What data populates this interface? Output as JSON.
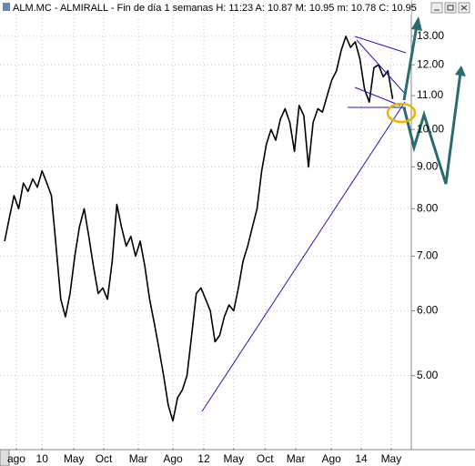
{
  "header": {
    "title": "ALM.MC - ALMIRALL - Fin de día 1 semanas  H: 11:23  A: 10.87  M: 10.95  m: 10.78  C: 10.95"
  },
  "chart_data": {
    "type": "line",
    "color": "#000000",
    "log_scale": true,
    "grid": true,
    "values": [
      7.3,
      7.8,
      8.3,
      8.0,
      8.6,
      8.4,
      8.7,
      8.5,
      8.9,
      8.6,
      8.3,
      7.2,
      6.2,
      5.9,
      6.3,
      7.0,
      7.6,
      8.0,
      7.4,
      6.8,
      6.3,
      6.4,
      6.2,
      6.9,
      8.1,
      7.6,
      7.2,
      7.4,
      7.0,
      7.3,
      6.8,
      6.2,
      5.8,
      5.4,
      5.0,
      4.6,
      4.4,
      4.7,
      4.8,
      5.0,
      5.6,
      6.3,
      6.4,
      6.2,
      6.0,
      5.5,
      5.6,
      5.9,
      6.1,
      6.0,
      6.4,
      6.9,
      7.2,
      7.6,
      8.0,
      8.9,
      9.6,
      10.0,
      9.7,
      10.3,
      10.6,
      10.2,
      9.4,
      10.7,
      10.4,
      9.0,
      10.2,
      10.6,
      10.5,
      11.0,
      11.5,
      11.8,
      12.5,
      13.0,
      12.6,
      12.8,
      12.2,
      11.2,
      10.8,
      11.9,
      12.0,
      11.6,
      11.8,
      10.9
    ],
    "xlim": [
      -1,
      87
    ],
    "xticks": [
      {
        "value": 2.5,
        "label": "ago"
      },
      {
        "value": 8,
        "label": "10"
      },
      {
        "value": 14.8,
        "label": "May"
      },
      {
        "value": 21.2,
        "label": "Oct"
      },
      {
        "value": 28.6,
        "label": "Mar"
      },
      {
        "value": 36,
        "label": "Ago"
      },
      {
        "value": 42.6,
        "label": "12"
      },
      {
        "value": 49,
        "label": "May"
      },
      {
        "value": 55.7,
        "label": "Oct"
      },
      {
        "value": 62.3,
        "label": "Mar"
      },
      {
        "value": 69.9,
        "label": "Ago"
      },
      {
        "value": 76.3,
        "label": "14"
      },
      {
        "value": 82.7,
        "label": "May"
      }
    ],
    "ylim": [
      4.08,
      14.4
    ],
    "yticks": [
      {
        "value": 5,
        "label": "5.00"
      },
      {
        "value": 6,
        "label": "6.00"
      },
      {
        "value": 7,
        "label": "7.00"
      },
      {
        "value": 8,
        "label": "8.00"
      },
      {
        "value": 9,
        "label": "9.00"
      },
      {
        "value": 10,
        "label": "10.00"
      },
      {
        "value": 11,
        "label": "11.00"
      },
      {
        "value": 12,
        "label": "12.00"
      },
      {
        "value": 13,
        "label": "13.00"
      }
    ]
  }
}
